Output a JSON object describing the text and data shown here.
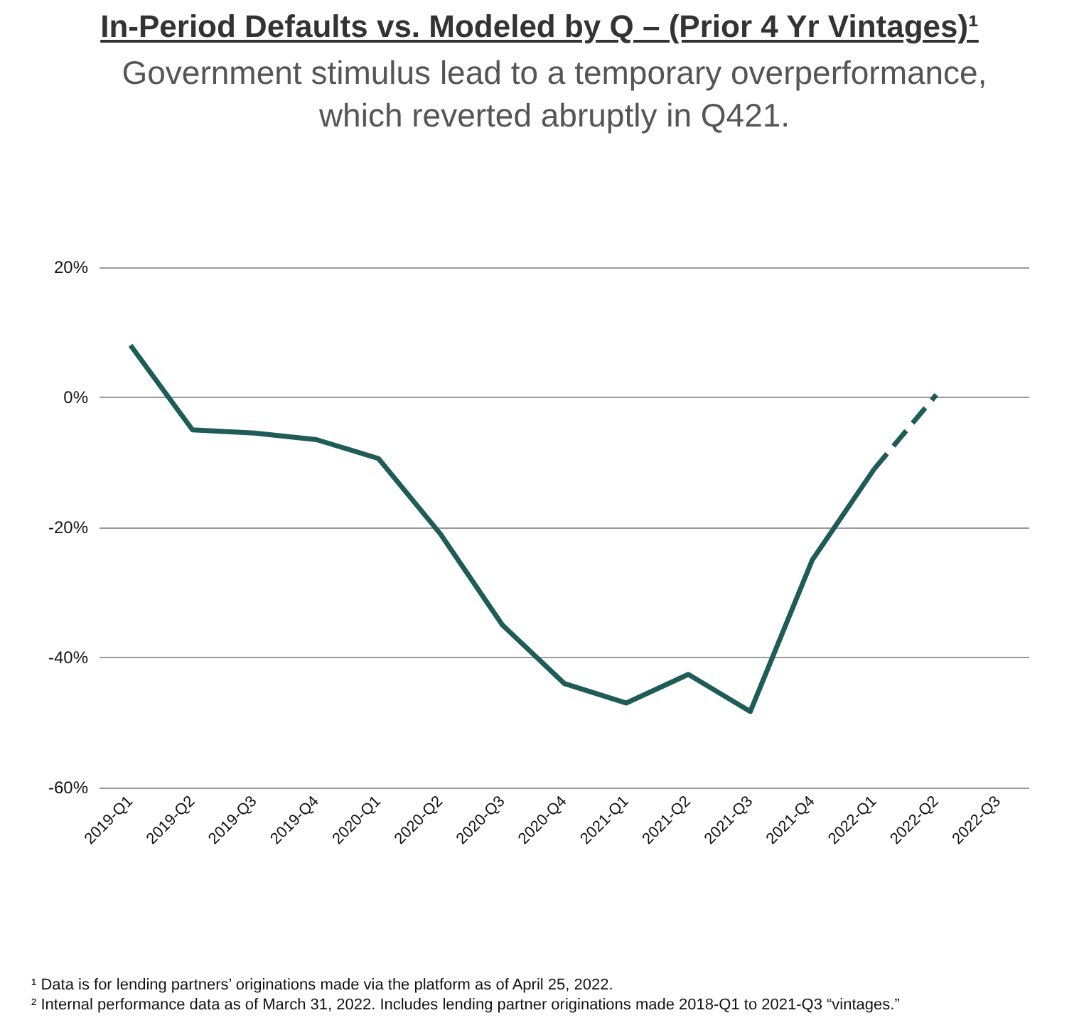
{
  "chart_data": {
    "type": "line",
    "title": "In-Period Defaults vs. Modeled by Q – (Prior 4 Yr Vintages)¹",
    "subtitle": "Government stimulus lead to a temporary overperformance, which reverted abruptly in Q421.",
    "categories": [
      "2019-Q1",
      "2019-Q2",
      "2019-Q3",
      "2019-Q4",
      "2020-Q1",
      "2020-Q2",
      "2020-Q3",
      "2020-Q4",
      "2021-Q1",
      "2021-Q2",
      "2021-Q3",
      "2021-Q4",
      "2022-Q1",
      "2022-Q2",
      "2022-Q3"
    ],
    "series": [
      {
        "color": "#1f5c57",
        "line_style": "solid",
        "values": [
          8,
          -5,
          -5.5,
          -6.5,
          -9.4,
          -21,
          -35,
          -44,
          -47,
          -42.6,
          -48.3,
          -25,
          -11,
          null,
          null
        ]
      },
      {
        "color": "#1f5c57",
        "line_style": "dashed",
        "values": [
          null,
          null,
          null,
          null,
          null,
          null,
          null,
          null,
          null,
          null,
          null,
          null,
          -11,
          0.4,
          null
        ]
      }
    ],
    "ylim": [
      -60,
      20
    ],
    "yticks": [
      {
        "value": -60,
        "label": "-60%"
      },
      {
        "value": -40,
        "label": "-40%"
      },
      {
        "value": -20,
        "label": "-20%"
      },
      {
        "value": 0,
        "label": "0%"
      },
      {
        "value": 20,
        "label": "20%"
      }
    ],
    "grid": "y",
    "marker": "none",
    "annotations": [
      "¹ Data is for lending partners’ originations made via the platform as of April 25, 2022.",
      "² Internal performance data as of March 31, 2022. Includes lending partner originations made 2018-Q1 to 2021-Q3 “vintages.”"
    ]
  }
}
